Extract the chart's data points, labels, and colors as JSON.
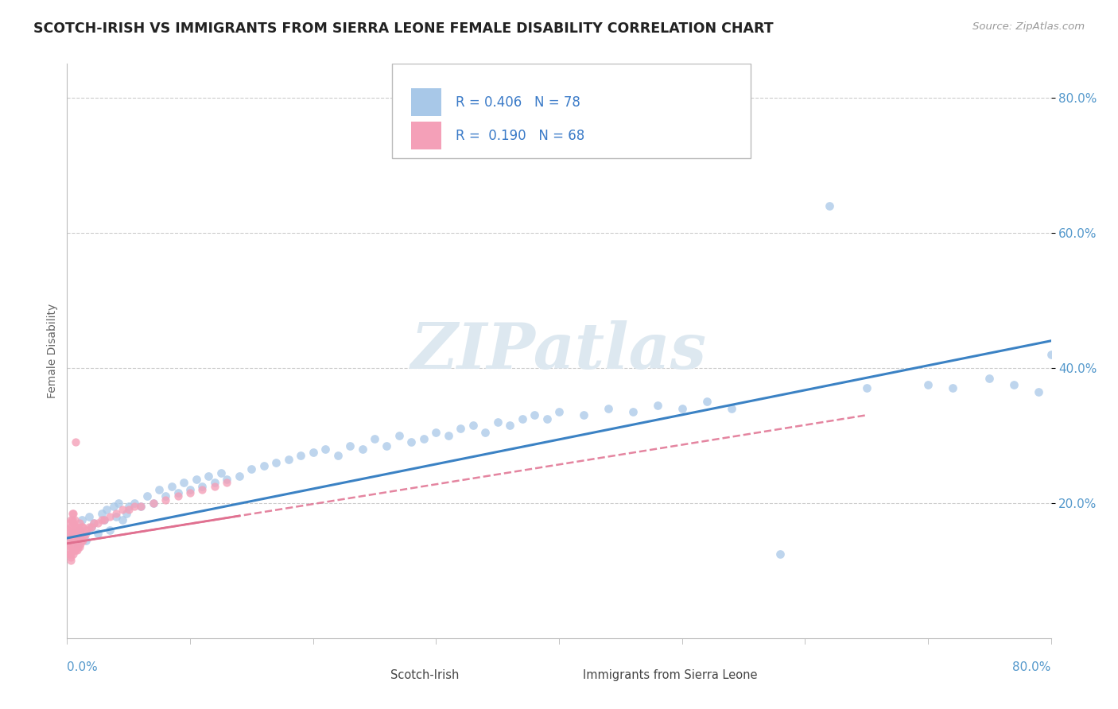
{
  "title": "SCOTCH-IRISH VS IMMIGRANTS FROM SIERRA LEONE FEMALE DISABILITY CORRELATION CHART",
  "source": "Source: ZipAtlas.com",
  "ylabel": "Female Disability",
  "xmin": 0.0,
  "xmax": 0.8,
  "ymin": 0.0,
  "ymax": 0.85,
  "color_blue": "#A8C8E8",
  "color_pink": "#F4A0B8",
  "color_blue_line": "#3B82C4",
  "color_pink_line": "#E07090",
  "color_axis_text": "#5599CC",
  "watermark_color": "#DDE8F0",
  "si_x": [
    0.005,
    0.008,
    0.01,
    0.012,
    0.015,
    0.018,
    0.02,
    0.022,
    0.025,
    0.028,
    0.03,
    0.032,
    0.035,
    0.038,
    0.04,
    0.042,
    0.045,
    0.048,
    0.05,
    0.055,
    0.06,
    0.065,
    0.07,
    0.075,
    0.08,
    0.085,
    0.09,
    0.095,
    0.1,
    0.105,
    0.11,
    0.115,
    0.12,
    0.125,
    0.13,
    0.14,
    0.15,
    0.16,
    0.17,
    0.18,
    0.19,
    0.2,
    0.21,
    0.22,
    0.23,
    0.24,
    0.25,
    0.26,
    0.27,
    0.28,
    0.29,
    0.3,
    0.31,
    0.32,
    0.33,
    0.34,
    0.35,
    0.36,
    0.37,
    0.38,
    0.39,
    0.4,
    0.42,
    0.44,
    0.46,
    0.48,
    0.5,
    0.52,
    0.54,
    0.58,
    0.62,
    0.65,
    0.7,
    0.72,
    0.75,
    0.77,
    0.79,
    0.8
  ],
  "si_y": [
    0.155,
    0.14,
    0.16,
    0.175,
    0.145,
    0.18,
    0.165,
    0.17,
    0.155,
    0.185,
    0.175,
    0.19,
    0.16,
    0.195,
    0.18,
    0.2,
    0.175,
    0.185,
    0.195,
    0.2,
    0.195,
    0.21,
    0.2,
    0.22,
    0.21,
    0.225,
    0.215,
    0.23,
    0.22,
    0.235,
    0.225,
    0.24,
    0.23,
    0.245,
    0.235,
    0.24,
    0.25,
    0.255,
    0.26,
    0.265,
    0.27,
    0.275,
    0.28,
    0.27,
    0.285,
    0.28,
    0.295,
    0.285,
    0.3,
    0.29,
    0.295,
    0.305,
    0.3,
    0.31,
    0.315,
    0.305,
    0.32,
    0.315,
    0.325,
    0.33,
    0.325,
    0.335,
    0.33,
    0.34,
    0.335,
    0.345,
    0.34,
    0.35,
    0.34,
    0.125,
    0.64,
    0.37,
    0.375,
    0.37,
    0.385,
    0.375,
    0.365,
    0.42
  ],
  "sl_x": [
    0.001,
    0.001,
    0.001,
    0.002,
    0.002,
    0.002,
    0.002,
    0.003,
    0.003,
    0.003,
    0.003,
    0.003,
    0.003,
    0.003,
    0.004,
    0.004,
    0.004,
    0.004,
    0.004,
    0.005,
    0.005,
    0.005,
    0.005,
    0.005,
    0.006,
    0.006,
    0.006,
    0.006,
    0.007,
    0.007,
    0.007,
    0.008,
    0.008,
    0.008,
    0.009,
    0.009,
    0.01,
    0.01,
    0.01,
    0.011,
    0.011,
    0.012,
    0.012,
    0.013,
    0.013,
    0.014,
    0.015,
    0.016,
    0.018,
    0.02,
    0.022,
    0.025,
    0.028,
    0.03,
    0.035,
    0.04,
    0.045,
    0.05,
    0.055,
    0.06,
    0.07,
    0.08,
    0.09,
    0.1,
    0.11,
    0.12,
    0.13,
    0.007
  ],
  "sl_y": [
    0.13,
    0.145,
    0.16,
    0.125,
    0.14,
    0.155,
    0.17,
    0.12,
    0.135,
    0.15,
    0.165,
    0.175,
    0.115,
    0.125,
    0.13,
    0.145,
    0.16,
    0.175,
    0.185,
    0.125,
    0.14,
    0.155,
    0.17,
    0.185,
    0.13,
    0.145,
    0.16,
    0.175,
    0.13,
    0.145,
    0.165,
    0.13,
    0.15,
    0.165,
    0.135,
    0.16,
    0.135,
    0.15,
    0.17,
    0.14,
    0.16,
    0.145,
    0.165,
    0.145,
    0.165,
    0.15,
    0.155,
    0.16,
    0.165,
    0.165,
    0.17,
    0.17,
    0.175,
    0.175,
    0.18,
    0.185,
    0.19,
    0.19,
    0.195,
    0.195,
    0.2,
    0.205,
    0.21,
    0.215,
    0.22,
    0.225,
    0.23,
    0.29
  ],
  "blue_line_x0": 0.0,
  "blue_line_y0": 0.148,
  "blue_line_x1": 0.8,
  "blue_line_y1": 0.44,
  "pink_line_x0": 0.0,
  "pink_line_y0": 0.14,
  "pink_line_x1": 0.65,
  "pink_line_y1": 0.33
}
